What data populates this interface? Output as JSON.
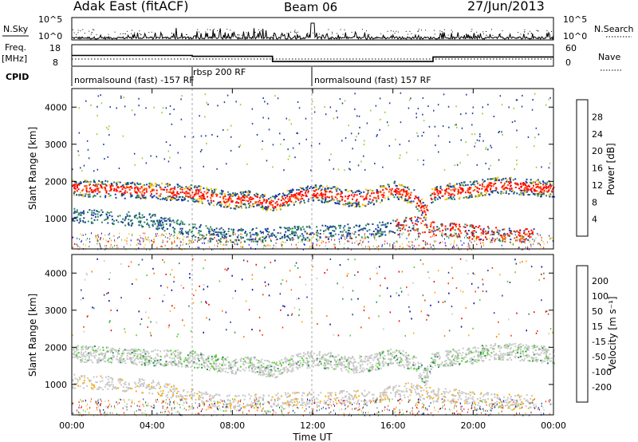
{
  "header": {
    "station": "Adak East (fitACF)",
    "beam": "Beam 06",
    "date": "27/Jun/2013"
  },
  "nsky_panel": {
    "left_label": "N.Sky",
    "right_label": "N.Search",
    "left_ticks": [
      "10^5",
      "10^0"
    ],
    "right_ticks": [
      "10^5",
      "10^0"
    ]
  },
  "freq_panel": {
    "left_label_line1": "Freq.",
    "left_label_line2": "[MHz]",
    "right_label": "Nave",
    "left_ticks": [
      "18",
      "8"
    ],
    "right_ticks": [
      "60",
      "0"
    ]
  },
  "cpid": {
    "label": "CPID",
    "segments": [
      {
        "text": "normalsound (fast) -157 RF"
      },
      {
        "text": "rbsp 200 RF"
      },
      {
        "text": "normalsound (fast) 157 RF"
      }
    ]
  },
  "power_panel": {
    "ylabel": "Slant Range [km]",
    "yticks": [
      "4000",
      "3000",
      "2000",
      "1000"
    ],
    "colorbar_label": "Power [dB]",
    "colorbar_ticks": [
      "28",
      "24",
      "20",
      "16",
      "12",
      "8",
      "4"
    ],
    "colorbar_colors": [
      "#ff0000",
      "#ff4a00",
      "#ff8a00",
      "#ffc000",
      "#9acd32",
      "#2e8b57",
      "#1c3f9a",
      "#0000ff"
    ]
  },
  "velocity_panel": {
    "ylabel": "Slant Range [km]",
    "yticks": [
      "4000",
      "3000",
      "2000",
      "1000"
    ],
    "colorbar_label": "Velocity [m s⁻¹]",
    "colorbar_ticks": [
      "200",
      "100",
      "50",
      "15",
      "-15",
      "-50",
      "-100",
      "-200"
    ],
    "colorbar_colors": [
      "#0000aa",
      "#1c3f9a",
      "#2e8b57",
      "#55cc33",
      "#c8c8c8",
      "#ffb000",
      "#ff7a00",
      "#ff3a00",
      "#ee0000"
    ]
  },
  "xaxis": {
    "ticks": [
      "00:00",
      "04:00",
      "08:00",
      "12:00",
      "16:00",
      "20:00",
      "00:00"
    ],
    "label": "Time UT"
  },
  "chart_data": {
    "type": "heatmap",
    "x_range_hours": [
      0,
      24
    ],
    "y_range_km": [
      180,
      4500
    ],
    "frequency_mhz": {
      "x": [
        0,
        6,
        6,
        10,
        10,
        18,
        18,
        24
      ],
      "y": [
        13,
        13,
        12.6,
        12.6,
        10.2,
        10.2,
        12.3,
        12.3
      ]
    },
    "cpid_boundaries_hours": [
      6,
      12
    ],
    "main_scatter_band_km": {
      "x": [
        0,
        2,
        4,
        6,
        8,
        9,
        10,
        11,
        12,
        13,
        14,
        15,
        16,
        17,
        17.6,
        18,
        19,
        20,
        21,
        22,
        23,
        24
      ],
      "y": [
        1850,
        1800,
        1750,
        1700,
        1500,
        1550,
        1400,
        1600,
        1700,
        1650,
        1550,
        1600,
        1800,
        1600,
        1200,
        1700,
        1750,
        1800,
        1900,
        1900,
        1850,
        1800
      ]
    },
    "secondary_band_km": {
      "x": [
        0,
        2,
        4,
        6,
        7,
        8,
        15,
        16,
        17,
        18,
        19,
        20,
        21,
        22,
        23
      ],
      "y": [
        1100,
        1050,
        950,
        700,
        600,
        550,
        700,
        800,
        900,
        750,
        700,
        650,
        600,
        550,
        600
      ]
    }
  }
}
